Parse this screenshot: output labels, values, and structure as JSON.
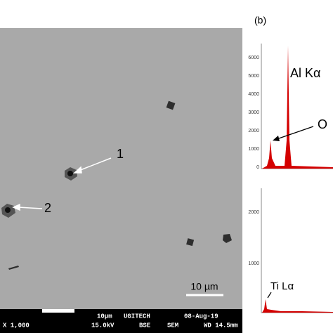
{
  "panel_label": "(b)",
  "sem_image": {
    "markers": [
      "1",
      "2"
    ],
    "scale_bar": "10 µm",
    "info_bar": {
      "magnification": "X 1,000",
      "scale": "10µm",
      "voltage": "15.0kV",
      "lab": "UGITECH",
      "detector": "BSE",
      "mode": "SEM",
      "date": "08-Aug-19",
      "working_distance": "WD 14.5mm"
    }
  },
  "spectra": [
    {
      "peaks": [
        "Al Kα",
        "O"
      ],
      "yticks": [
        "6000",
        "5000",
        "4000",
        "3000",
        "2000",
        "1000",
        "0"
      ]
    },
    {
      "peaks": [
        "Ti Lα"
      ],
      "yticks": [
        "2000",
        "1000"
      ]
    }
  ]
}
